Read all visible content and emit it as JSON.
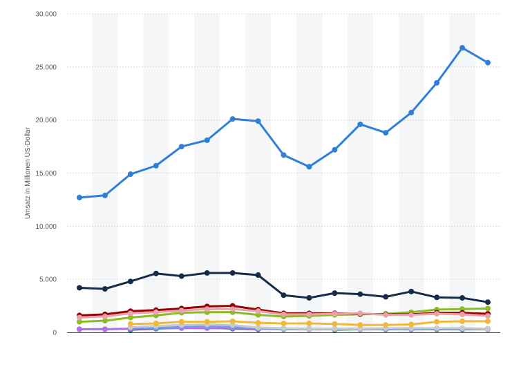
{
  "chart_data": {
    "type": "line",
    "title": "",
    "xlabel": "",
    "ylabel": "Umsatz in Millionen US-Dollar",
    "ylim": [
      0,
      30000
    ],
    "y_ticks": [
      0,
      5000,
      10000,
      15000,
      20000,
      25000,
      30000
    ],
    "y_tick_labels": [
      "0",
      "5.000",
      "10.000",
      "15.000",
      "20.000",
      "25.000",
      "30.000"
    ],
    "grid": "horizontal",
    "x": [
      1,
      2,
      3,
      4,
      5,
      6,
      7,
      8,
      9,
      10,
      11,
      12,
      13,
      14,
      15,
      16,
      17
    ],
    "series": [
      {
        "color": "#2f7ed8",
        "values": [
          12700,
          12900,
          14900,
          15700,
          17500,
          18100,
          20100,
          19900,
          16700,
          15600,
          17200,
          19600,
          18800,
          20700,
          23500,
          26800,
          25400
        ]
      },
      {
        "color": "#142c4a",
        "values": [
          4200,
          4100,
          4800,
          5550,
          5300,
          5600,
          5600,
          5400,
          3500,
          3250,
          3700,
          3600,
          3350,
          3850,
          3300,
          3250,
          2850
        ]
      },
      {
        "color": "#e6a3ad",
        "values": [
          1400,
          1500,
          1800,
          1900,
          2050,
          2200,
          2200,
          2000,
          1700,
          1700,
          1750,
          1800,
          1650,
          1650,
          1750,
          1700,
          1550
        ]
      },
      {
        "color": "#990000",
        "values": [
          1600,
          1700,
          2000,
          2100,
          2250,
          2450,
          2500,
          2150,
          1800,
          1800,
          1800,
          1750,
          1700,
          1700,
          1850,
          1850,
          1750
        ]
      },
      {
        "color": "#8bbc21",
        "values": [
          1000,
          1100,
          1400,
          1600,
          1850,
          1900,
          1900,
          1650,
          1500,
          1550,
          1650,
          1700,
          1750,
          1900,
          2150,
          2200,
          2250
        ]
      },
      {
        "color": "#f0b93a",
        "values": [
          null,
          null,
          800,
          850,
          1000,
          1000,
          1050,
          900,
          850,
          850,
          800,
          700,
          700,
          750,
          1000,
          1050,
          1050
        ]
      },
      {
        "color": "#c9cacc",
        "values": [
          null,
          null,
          500,
          600,
          700,
          750,
          700,
          450,
          400,
          350,
          350,
          350,
          400,
          400,
          400,
          400,
          350
        ]
      },
      {
        "color": "#6fa0e8",
        "values": [
          null,
          null,
          450,
          450,
          550,
          550,
          550,
          400,
          350,
          350,
          350,
          350,
          350,
          350,
          350,
          350,
          350
        ]
      },
      {
        "color": "#b06ee8",
        "values": [
          300,
          300,
          350,
          400,
          400,
          400,
          400,
          350,
          300,
          300,
          300,
          300,
          300,
          300,
          350,
          350,
          300
        ]
      },
      {
        "color": "#13846b",
        "values": [
          null,
          null,
          250,
          350,
          450,
          450,
          350,
          300,
          null,
          null,
          250,
          300,
          300,
          300,
          300,
          300,
          300
        ]
      }
    ]
  }
}
